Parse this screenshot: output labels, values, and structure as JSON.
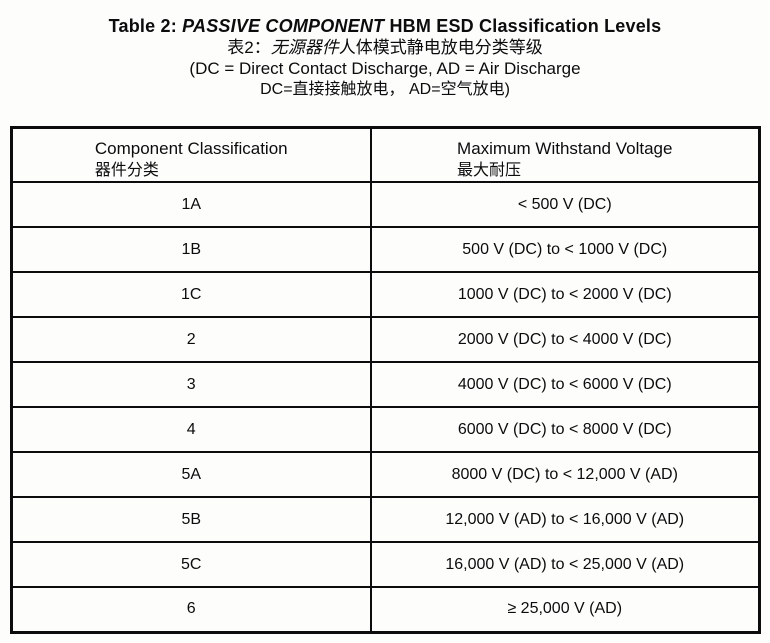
{
  "title": {
    "line1_prefix": "Table 2: ",
    "line1_italic": "PASSIVE COMPONENT",
    "line1_suffix": " HBM ESD Classification Levels",
    "line2_prefix": "表2：",
    "line2_italic": "无源器件",
    "line2_suffix": "人体模式静电放电分类等级",
    "line3": "(DC = Direct Contact Discharge, AD = Air Discharge",
    "line4": "DC=直接接触放电， AD=空气放电)"
  },
  "table": {
    "headers": [
      {
        "en": "Component Classification",
        "zh": "器件分类"
      },
      {
        "en": "Maximum Withstand Voltage",
        "zh": "最大耐压"
      }
    ],
    "rows": [
      {
        "classification": "1A",
        "voltage": "< 500 V (DC)"
      },
      {
        "classification": "1B",
        "voltage": "500 V (DC) to < 1000 V (DC)"
      },
      {
        "classification": "1C",
        "voltage": "1000 V (DC) to < 2000 V (DC)"
      },
      {
        "classification": "2",
        "voltage": "2000 V (DC) to < 4000 V (DC)"
      },
      {
        "classification": "3",
        "voltage": "4000 V (DC) to < 6000 V (DC)"
      },
      {
        "classification": "4",
        "voltage": "6000 V (DC) to < 8000 V (DC)"
      },
      {
        "classification": "5A",
        "voltage": "8000 V (DC) to < 12,000 V (AD)"
      },
      {
        "classification": "5B",
        "voltage": "12,000 V (AD) to < 16,000 V (AD)"
      },
      {
        "classification": "5C",
        "voltage": "16,000 V (AD) to < 25,000 V (AD)"
      },
      {
        "classification": "6",
        "voltage": "≥ 25,000 V (AD)"
      }
    ]
  },
  "colors": {
    "text": "#0c0c0c",
    "border": "#0c0c0c",
    "background": "#fdfdfc"
  }
}
